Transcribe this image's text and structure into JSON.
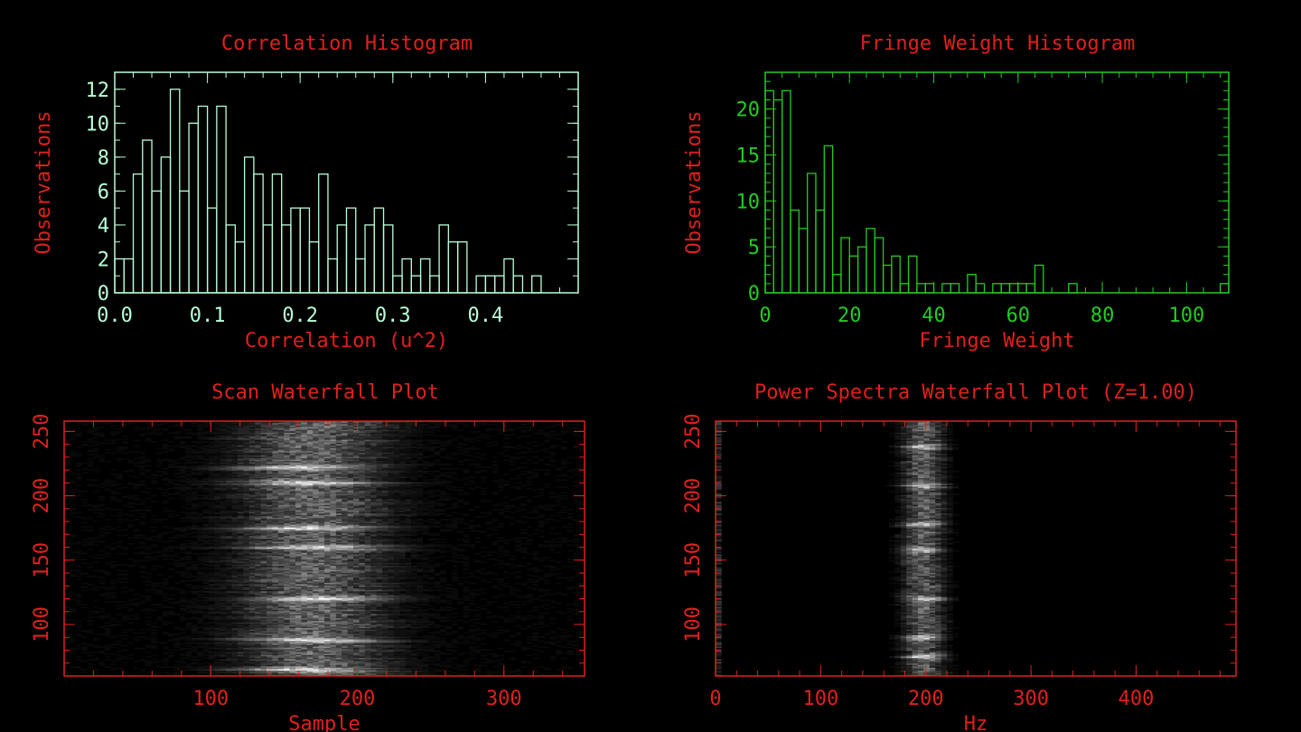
{
  "colors": {
    "background": "#000000",
    "title_red": "#e0201e",
    "axis_hist1": "#b8ffd8",
    "axis_hist2": "#22cc22",
    "axis_waterfall": "#e0201e",
    "waterfall_peak": "#ffffff"
  },
  "chart_data": [
    {
      "type": "bar",
      "title": "Correlation Histogram",
      "xlabel": "Correlation (u^2)",
      "ylabel": "Observations",
      "xlim": [
        0.0,
        0.5
      ],
      "ylim": [
        0,
        13
      ],
      "bin_width": 0.01,
      "xticks": [
        "0.0",
        "0.1",
        "0.2",
        "0.3",
        "0.4"
      ],
      "xtick_values": [
        0.0,
        0.1,
        0.2,
        0.3,
        0.4
      ],
      "yticks": [
        "0",
        "2",
        "4",
        "6",
        "8",
        "10",
        "12"
      ],
      "ytick_values": [
        0,
        2,
        4,
        6,
        8,
        10,
        12
      ],
      "values": [
        2,
        2,
        7,
        9,
        6,
        8,
        12,
        6,
        10,
        11,
        5,
        11,
        4,
        3,
        8,
        7,
        4,
        7,
        4,
        5,
        5,
        3,
        7,
        2,
        4,
        5,
        2,
        4,
        5,
        4,
        1,
        2,
        1,
        2,
        1,
        4,
        3,
        3,
        0,
        1,
        1,
        1,
        2,
        1,
        0,
        1,
        0,
        0,
        0,
        0
      ]
    },
    {
      "type": "bar",
      "title": "Fringe Weight Histogram",
      "xlabel": "Fringe Weight",
      "ylabel": "Observations",
      "xlim": [
        0,
        110
      ],
      "ylim": [
        0,
        24
      ],
      "bin_width": 2,
      "xticks": [
        "0",
        "20",
        "40",
        "60",
        "80",
        "100"
      ],
      "xtick_values": [
        0,
        20,
        40,
        60,
        80,
        100
      ],
      "yticks": [
        "0",
        "5",
        "10",
        "15",
        "20"
      ],
      "ytick_values": [
        0,
        5,
        10,
        15,
        20
      ],
      "values": [
        22,
        21,
        22,
        9,
        7,
        13,
        9,
        16,
        2,
        6,
        4,
        5,
        7,
        6,
        3,
        4,
        1,
        4,
        1,
        1,
        0,
        1,
        1,
        0,
        2,
        1,
        0,
        1,
        1,
        1,
        1,
        1,
        3,
        0,
        0,
        0,
        1,
        0,
        0,
        0,
        0,
        0,
        0,
        0,
        0,
        0,
        0,
        0,
        0,
        0,
        0,
        0,
        0,
        0,
        1
      ]
    },
    {
      "type": "heatmap",
      "title": "Scan Waterfall Plot",
      "xlabel": "Sample",
      "ylabel": "",
      "xlim": [
        0,
        355
      ],
      "ylim": [
        60,
        258
      ],
      "xticks": [
        "100",
        "200",
        "300"
      ],
      "xtick_values": [
        100,
        200,
        300
      ],
      "yticks": [
        "100",
        "150",
        "200",
        "250"
      ],
      "ytick_values": [
        100,
        150,
        200,
        250
      ],
      "band_center": 170,
      "band_halfwidth": 55,
      "bright_rows": [
        65,
        88,
        120,
        160,
        175,
        210,
        222
      ]
    },
    {
      "type": "heatmap",
      "title": "Power Spectra Waterfall Plot (Z=1.00)",
      "xlabel": "Hz",
      "ylabel": "",
      "xlim": [
        0,
        495
      ],
      "ylim": [
        60,
        258
      ],
      "xticks": [
        "0",
        "100",
        "200",
        "300",
        "400"
      ],
      "xtick_values": [
        0,
        100,
        200,
        300,
        400
      ],
      "yticks": [
        "100",
        "150",
        "200",
        "250"
      ],
      "ytick_values": [
        100,
        150,
        200,
        250
      ],
      "band_center": 198,
      "band_halfwidth": 22,
      "bright_rows": [
        75,
        90,
        120,
        158,
        178,
        208,
        238
      ]
    }
  ]
}
